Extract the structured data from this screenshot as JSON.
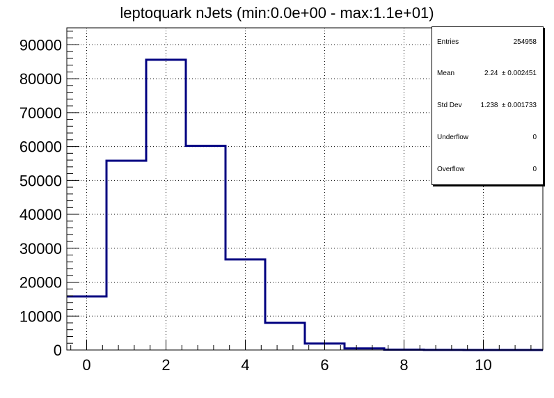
{
  "title": "leptoquark nJets (min:0.0e+00 - max:1.1e+01)",
  "stats": {
    "entries_label": "Entries",
    "entries_value": "254958",
    "mean_label": "Mean",
    "mean_value": "2.24  ± 0.002451",
    "stddev_label": "Std Dev",
    "stddev_value": "1.238  ± 0.001733",
    "underflow_label": "Underflow",
    "underflow_value": "0",
    "overflow_label": "Overflow",
    "overflow_value": "0"
  },
  "chart_data": {
    "type": "histogram",
    "title": "leptoquark nJets (min:0.0e+00 - max:1.1e+01)",
    "xlabel": "",
    "ylabel": "",
    "xlim": [
      -0.5,
      11.5
    ],
    "ylim": [
      0,
      95000
    ],
    "x_ticks": [
      0,
      2,
      4,
      6,
      8,
      10
    ],
    "y_ticks": [
      0,
      10000,
      20000,
      30000,
      40000,
      50000,
      60000,
      70000,
      80000,
      90000
    ],
    "bin_edges": [
      -0.5,
      0.5,
      1.5,
      2.5,
      3.5,
      4.5,
      5.5,
      6.5,
      7.5,
      8.5,
      9.5,
      10.5,
      11.5
    ],
    "values": [
      15800,
      55800,
      85600,
      60200,
      26700,
      8000,
      1900,
      450,
      100,
      30,
      10,
      5
    ],
    "grid": true,
    "line_color": "#000080"
  }
}
